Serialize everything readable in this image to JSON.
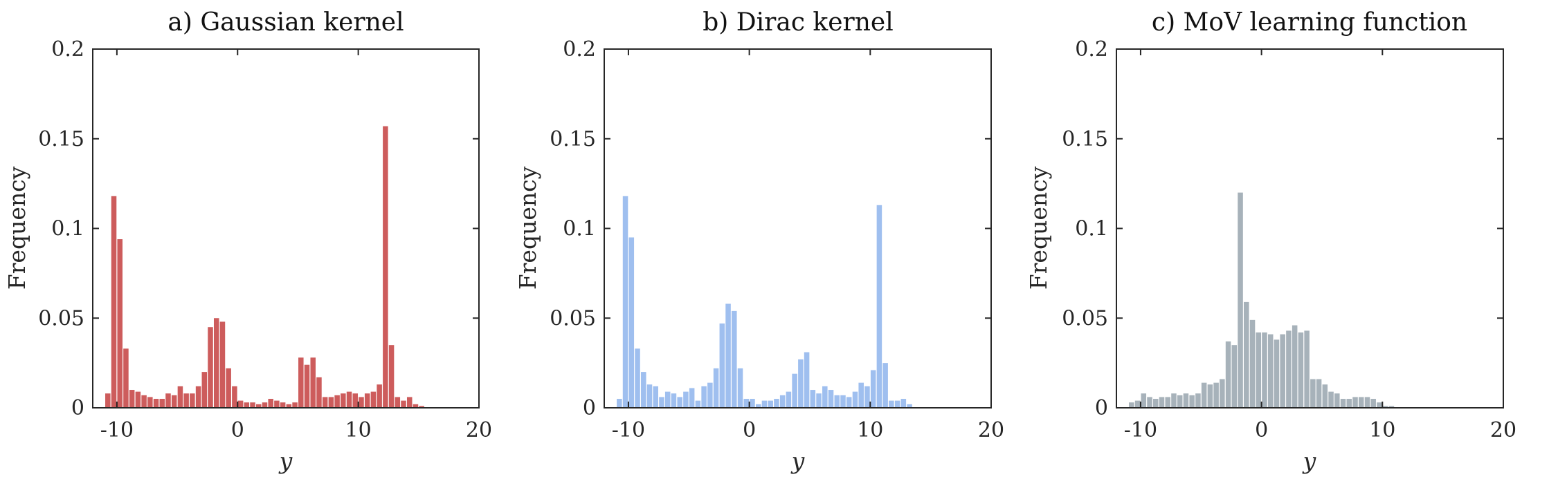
{
  "chart_data": [
    {
      "type": "bar",
      "title": "a) Gaussian kernel",
      "xlabel": "y",
      "ylabel": "Frequency",
      "xlim": [
        -12,
        20
      ],
      "ylim": [
        0,
        0.2
      ],
      "xticks": [
        -10,
        0,
        10,
        20
      ],
      "xtick_labels": [
        "-10",
        "0",
        "10",
        "20"
      ],
      "yticks": [
        0,
        0.05,
        0.1,
        0.15,
        0.2
      ],
      "ytick_labels": [
        "0",
        "0.05",
        "0.1",
        "0.15",
        "0.2"
      ],
      "bin_width": 0.5,
      "bar_color": "#cd5c5c",
      "bins_x": [
        -10.75,
        -10.25,
        -9.75,
        -9.25,
        -8.75,
        -8.25,
        -7.75,
        -7.25,
        -6.75,
        -6.25,
        -5.75,
        -5.25,
        -4.75,
        -4.25,
        -3.75,
        -3.25,
        -2.75,
        -2.25,
        -1.75,
        -1.25,
        -0.75,
        -0.25,
        0.25,
        0.75,
        1.25,
        1.75,
        2.25,
        2.75,
        3.25,
        3.75,
        4.25,
        4.75,
        5.25,
        5.75,
        6.25,
        6.75,
        7.25,
        7.75,
        8.25,
        8.75,
        9.25,
        9.75,
        10.25,
        10.75,
        11.25,
        11.75,
        12.25,
        12.75,
        13.25,
        13.75,
        14.25,
        14.75,
        15.25,
        15.75,
        16.25,
        16.75,
        17.25
      ],
      "values": [
        0.008,
        0.118,
        0.094,
        0.033,
        0.01,
        0.009,
        0.007,
        0.006,
        0.005,
        0.005,
        0.008,
        0.007,
        0.012,
        0.008,
        0.008,
        0.012,
        0.02,
        0.045,
        0.05,
        0.048,
        0.022,
        0.012,
        0.004,
        0.003,
        0.003,
        0.002,
        0.003,
        0.005,
        0.004,
        0.003,
        0.002,
        0.003,
        0.028,
        0.024,
        0.028,
        0.017,
        0.006,
        0.006,
        0.007,
        0.008,
        0.009,
        0.008,
        0.006,
        0.008,
        0.009,
        0.013,
        0.157,
        0.035,
        0.006,
        0.004,
        0.006,
        0.002,
        0.001,
        0,
        0,
        0,
        0
      ]
    },
    {
      "type": "bar",
      "title": "b) Dirac kernel",
      "xlabel": "y",
      "ylabel": "Frequency",
      "xlim": [
        -12,
        20
      ],
      "ylim": [
        0,
        0.2
      ],
      "xticks": [
        -10,
        0,
        10,
        20
      ],
      "xtick_labels": [
        "-10",
        "0",
        "10",
        "20"
      ],
      "yticks": [
        0,
        0.05,
        0.1,
        0.15,
        0.2
      ],
      "ytick_labels": [
        "0",
        "0.05",
        "0.1",
        "0.15",
        "0.2"
      ],
      "bin_width": 0.5,
      "bar_color": "#9fbfef",
      "bins_x": [
        -10.75,
        -10.25,
        -9.75,
        -9.25,
        -8.75,
        -8.25,
        -7.75,
        -7.25,
        -6.75,
        -6.25,
        -5.75,
        -5.25,
        -4.75,
        -4.25,
        -3.75,
        -3.25,
        -2.75,
        -2.25,
        -1.75,
        -1.25,
        -0.75,
        -0.25,
        0.25,
        0.75,
        1.25,
        1.75,
        2.25,
        2.75,
        3.25,
        3.75,
        4.25,
        4.75,
        5.25,
        5.75,
        6.25,
        6.75,
        7.25,
        7.75,
        8.25,
        8.75,
        9.25,
        9.75,
        10.25,
        10.75,
        11.25,
        11.75,
        12.25,
        12.75,
        13.25,
        13.75,
        14.25,
        14.75,
        15.25,
        15.75,
        16.25,
        16.75,
        17.25
      ],
      "values": [
        0.005,
        0.118,
        0.095,
        0.033,
        0.02,
        0.013,
        0.012,
        0.006,
        0.009,
        0.008,
        0.006,
        0.009,
        0.011,
        0.004,
        0.012,
        0.014,
        0.022,
        0.047,
        0.058,
        0.054,
        0.022,
        0.005,
        0.005,
        0.002,
        0.004,
        0.004,
        0.005,
        0.007,
        0.009,
        0.019,
        0.027,
        0.031,
        0.01,
        0.008,
        0.012,
        0.01,
        0.007,
        0.007,
        0.006,
        0.009,
        0.014,
        0.012,
        0.021,
        0.113,
        0.025,
        0.004,
        0.004,
        0.005,
        0.002,
        0,
        0,
        0,
        0,
        0,
        0,
        0,
        0
      ]
    },
    {
      "type": "bar",
      "title": "c) MoV learning function",
      "xlabel": "y",
      "ylabel": "Frequency",
      "xlim": [
        -12,
        20
      ],
      "ylim": [
        0,
        0.2
      ],
      "xticks": [
        -10,
        0,
        10,
        20
      ],
      "xtick_labels": [
        "-10",
        "0",
        "10",
        "20"
      ],
      "yticks": [
        0,
        0.05,
        0.1,
        0.15,
        0.2
      ],
      "ytick_labels": [
        "0",
        "0.05",
        "0.1",
        "0.15",
        "0.2"
      ],
      "bin_width": 0.5,
      "bar_color": "#a7b2ba",
      "bins_x": [
        -10.75,
        -10.25,
        -9.75,
        -9.25,
        -8.75,
        -8.25,
        -7.75,
        -7.25,
        -6.75,
        -6.25,
        -5.75,
        -5.25,
        -4.75,
        -4.25,
        -3.75,
        -3.25,
        -2.75,
        -2.25,
        -1.75,
        -1.25,
        -0.75,
        -0.25,
        0.25,
        0.75,
        1.25,
        1.75,
        2.25,
        2.75,
        3.25,
        3.75,
        4.25,
        4.75,
        5.25,
        5.75,
        6.25,
        6.75,
        7.25,
        7.75,
        8.25,
        8.75,
        9.25,
        9.75,
        10.25,
        10.75,
        11.25,
        11.75,
        12.25,
        12.75,
        13.25,
        13.75,
        14.25,
        14.75,
        15.25,
        15.75,
        16.25,
        16.75,
        17.25
      ],
      "values": [
        0.003,
        0.004,
        0.008,
        0.006,
        0.005,
        0.006,
        0.006,
        0.008,
        0.007,
        0.008,
        0.007,
        0.008,
        0.014,
        0.013,
        0.014,
        0.016,
        0.037,
        0.035,
        0.12,
        0.059,
        0.049,
        0.042,
        0.042,
        0.041,
        0.038,
        0.041,
        0.043,
        0.046,
        0.042,
        0.043,
        0.016,
        0.016,
        0.013,
        0.009,
        0.008,
        0.005,
        0.005,
        0.006,
        0.006,
        0.006,
        0.005,
        0.003,
        0.001,
        0.001,
        0,
        0,
        0,
        0,
        0,
        0,
        0,
        0,
        0,
        0,
        0,
        0,
        0
      ]
    }
  ]
}
